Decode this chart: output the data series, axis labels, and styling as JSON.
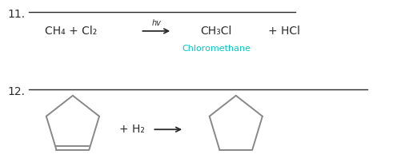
{
  "bg_color": "#ffffff",
  "text_color": "#2b2b2b",
  "cyan_color": "#00c8c8",
  "item11_label": "11.",
  "item12_label": "12.",
  "reactants11": "CH₄ + Cl₂",
  "hv_label": "hv",
  "product11a": "CH₃Cl",
  "product11b": "+ HCl",
  "chloromethane": "Chloromethane",
  "plus_h2": "+ H₂",
  "pentagon_color": "#888888",
  "arrow_color": "#2b2b2b",
  "line_color": "#2b2b2b"
}
